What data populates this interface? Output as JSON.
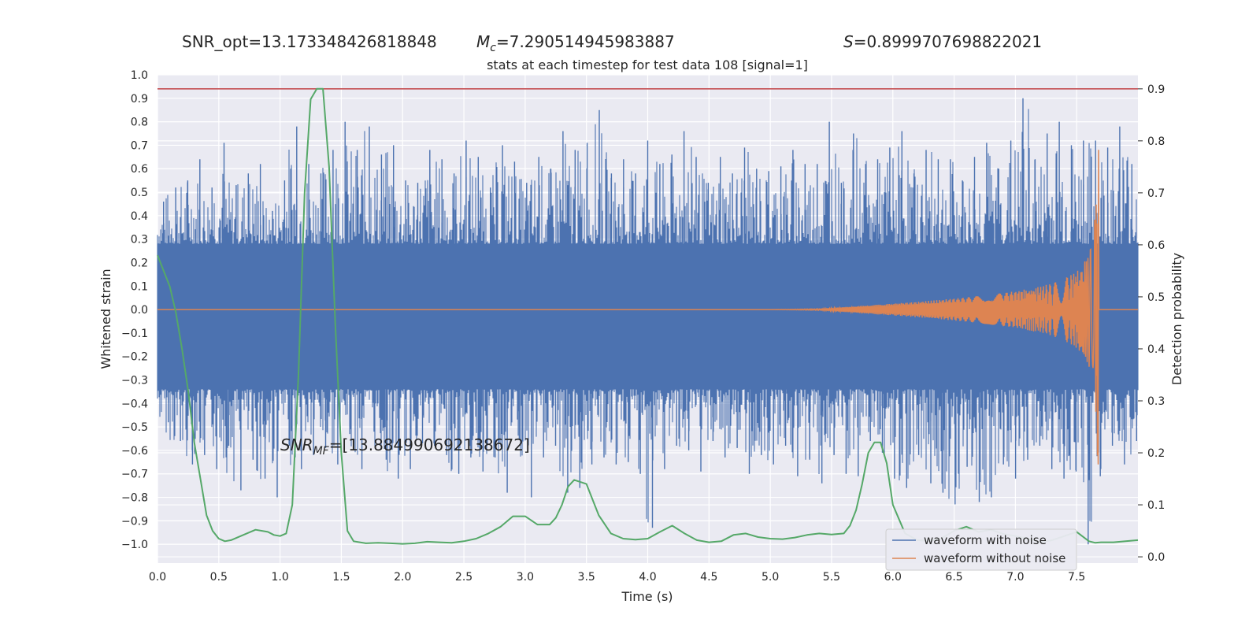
{
  "chart_data": {
    "type": "line",
    "title": "stats at each timestep for test data 108 [signal=1]",
    "annotations": {
      "snr_opt": "SNR_opt=13.173348426818848",
      "mc_symbol": "M",
      "mc_sub": "c",
      "mc_value": "=7.290514945983887",
      "s_symbol": "S",
      "s_value": "=0.8999707698822021",
      "snr_mf_symbol": "SNR",
      "snr_mf_sub": "MF",
      "snr_mf_value": "=[13.884990692138672]"
    },
    "xlabel": "Time (s)",
    "ylabel": "Whitened strain",
    "y2label": "Detection probability",
    "xlim": [
      0,
      8
    ],
    "ylim": [
      -1.08,
      1.0
    ],
    "y2lim": [
      -0.012,
      0.927
    ],
    "xticks": [
      "0.0",
      "0.5",
      "1.0",
      "1.5",
      "2.0",
      "2.5",
      "3.0",
      "3.5",
      "4.0",
      "4.5",
      "5.0",
      "5.5",
      "6.0",
      "6.5",
      "7.0",
      "7.5"
    ],
    "yticks": [
      "1.0",
      "0.9",
      "0.8",
      "0.7",
      "0.6",
      "0.5",
      "0.4",
      "0.3",
      "0.2",
      "0.1",
      "0.0",
      "−0.1",
      "−0.2",
      "−0.3",
      "−0.4",
      "−0.5",
      "−0.6",
      "−0.7",
      "−0.8",
      "−0.9",
      "−1.0"
    ],
    "y2ticks": [
      "0.9",
      "0.8",
      "0.7",
      "0.6",
      "0.5",
      "0.4",
      "0.3",
      "0.2",
      "0.1",
      "0.0"
    ],
    "threshold": 0.9,
    "grid": true,
    "legend_position": "bottom-right",
    "colors": {
      "noise": "#4c72b0",
      "clean": "#dd8452",
      "prob": "#55a868",
      "threshold": "#c44e52"
    },
    "series": [
      {
        "name": "waveform with noise",
        "axis": "left",
        "envelope_upper": [
          0.46,
          0.52,
          0.55,
          0.64,
          0.52,
          0.71,
          0.53,
          0.58,
          0.62,
          0.42,
          0.55,
          0.78,
          0.62,
          0.58,
          0.68,
          0.8,
          0.68,
          0.78,
          0.66,
          0.7,
          0.55,
          0.54,
          0.68,
          0.64,
          0.58,
          0.72,
          0.65,
          0.52,
          0.7,
          0.63,
          0.54,
          0.65,
          0.6,
          0.76,
          0.68,
          0.71,
          0.85,
          0.58,
          0.64,
          0.58,
          0.72,
          0.62,
          0.66,
          0.76,
          0.65,
          0.54,
          0.65,
          0.58,
          0.69,
          0.6,
          0.59,
          0.61,
          0.68,
          0.62,
          0.62,
          0.8,
          0.54,
          0.75,
          0.62,
          0.64,
          0.69,
          0.76,
          0.58,
          0.68,
          0.64,
          0.64,
          0.55,
          0.65,
          0.71,
          0.6,
          0.72,
          0.9,
          0.64,
          0.75,
          0.8,
          0.7,
          0.72,
          0.72,
          0.69,
          0.78,
          0.62
        ],
        "envelope_lower": [
          -0.48,
          -0.56,
          -0.66,
          -0.62,
          -0.68,
          -0.58,
          -0.77,
          -0.64,
          -0.72,
          -0.8,
          -0.58,
          -0.68,
          -0.62,
          -0.59,
          -0.66,
          -0.53,
          -0.68,
          -0.52,
          -0.64,
          -0.72,
          -0.68,
          -0.57,
          -0.58,
          -0.62,
          -0.7,
          -0.63,
          -0.69,
          -0.63,
          -0.78,
          -0.55,
          -0.8,
          -0.63,
          -0.58,
          -0.78,
          -0.76,
          -0.66,
          -0.63,
          -0.66,
          -0.65,
          -0.7,
          -0.93,
          -0.68,
          -0.58,
          -0.6,
          -0.69,
          -0.56,
          -0.63,
          -0.59,
          -0.7,
          -0.62,
          -0.66,
          -0.58,
          -0.71,
          -0.64,
          -0.74,
          -0.62,
          -0.7,
          -0.71,
          -0.56,
          -0.61,
          -0.72,
          -0.76,
          -0.62,
          -0.74,
          -0.78,
          -0.83,
          -0.67,
          -0.82,
          -0.8,
          -0.66,
          -0.72,
          -0.64,
          -0.58,
          -0.68,
          -0.72,
          -0.69,
          -1.0,
          -0.71,
          -0.58,
          -0.66,
          -0.56
        ]
      },
      {
        "name": "waveform without noise",
        "axis": "left",
        "t": [
          0.0,
          5.0,
          5.4,
          5.6,
          5.8,
          6.0,
          6.2,
          6.4,
          6.6,
          6.8,
          7.0,
          7.2,
          7.3,
          7.4,
          7.5,
          7.55,
          7.6,
          7.63,
          7.66,
          7.68,
          7.7,
          8.0
        ],
        "amplitude": [
          0,
          0,
          0.003,
          0.01,
          0.018,
          0.025,
          0.033,
          0.042,
          0.052,
          0.064,
          0.078,
          0.098,
          0.112,
          0.132,
          0.165,
          0.19,
          0.24,
          0.32,
          0.52,
          0.75,
          0,
          0
        ]
      },
      {
        "name": "detection probability",
        "axis": "right",
        "t": [
          0.0,
          0.05,
          0.1,
          0.15,
          0.2,
          0.25,
          0.3,
          0.35,
          0.4,
          0.45,
          0.5,
          0.55,
          0.6,
          0.7,
          0.8,
          0.9,
          0.95,
          1.0,
          1.05,
          1.1,
          1.15,
          1.2,
          1.25,
          1.3,
          1.35,
          1.4,
          1.45,
          1.5,
          1.55,
          1.6,
          1.7,
          1.8,
          1.9,
          2.0,
          2.1,
          2.2,
          2.3,
          2.4,
          2.5,
          2.6,
          2.7,
          2.8,
          2.9,
          3.0,
          3.1,
          3.2,
          3.25,
          3.3,
          3.35,
          3.4,
          3.5,
          3.6,
          3.7,
          3.8,
          3.9,
          4.0,
          4.1,
          4.2,
          4.3,
          4.4,
          4.5,
          4.6,
          4.7,
          4.8,
          4.9,
          5.0,
          5.1,
          5.2,
          5.3,
          5.4,
          5.5,
          5.6,
          5.65,
          5.7,
          5.75,
          5.8,
          5.85,
          5.9,
          5.95,
          6.0,
          6.1,
          6.2,
          6.3,
          6.4,
          6.5,
          6.6,
          6.7,
          6.8,
          6.9,
          7.0,
          7.1,
          7.2,
          7.3,
          7.4,
          7.5,
          7.6,
          7.65,
          7.7,
          7.8,
          7.9,
          8.0
        ],
        "values": [
          0.58,
          0.55,
          0.52,
          0.47,
          0.4,
          0.32,
          0.22,
          0.15,
          0.08,
          0.05,
          0.035,
          0.03,
          0.032,
          0.042,
          0.052,
          0.048,
          0.042,
          0.04,
          0.045,
          0.1,
          0.35,
          0.7,
          0.88,
          0.9,
          0.9,
          0.75,
          0.45,
          0.2,
          0.05,
          0.03,
          0.026,
          0.027,
          0.026,
          0.025,
          0.026,
          0.029,
          0.028,
          0.027,
          0.03,
          0.035,
          0.045,
          0.058,
          0.078,
          0.078,
          0.062,
          0.062,
          0.075,
          0.1,
          0.135,
          0.148,
          0.14,
          0.08,
          0.045,
          0.035,
          0.033,
          0.035,
          0.048,
          0.06,
          0.045,
          0.032,
          0.028,
          0.03,
          0.042,
          0.045,
          0.038,
          0.035,
          0.034,
          0.037,
          0.042,
          0.045,
          0.043,
          0.045,
          0.06,
          0.09,
          0.14,
          0.2,
          0.22,
          0.22,
          0.18,
          0.1,
          0.045,
          0.032,
          0.03,
          0.036,
          0.05,
          0.058,
          0.048,
          0.052,
          0.044,
          0.04,
          0.035,
          0.028,
          0.032,
          0.04,
          0.048,
          0.03,
          0.027,
          0.028,
          0.028,
          0.03,
          0.032
        ]
      }
    ],
    "legend": [
      "waveform with noise",
      "waveform without noise"
    ]
  }
}
